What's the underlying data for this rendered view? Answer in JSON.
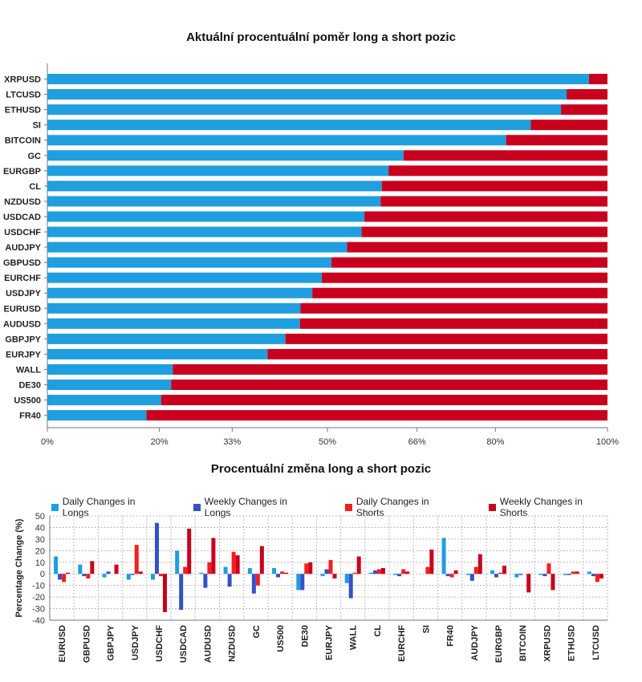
{
  "chart_data": [
    {
      "type": "bar",
      "orientation": "horizontal",
      "stacked": true,
      "title": "Aktuální procentuální poměr long a short pozic",
      "categories": [
        "XRPUSD",
        "LTCUSD",
        "ETHUSD",
        "SI",
        "BITCOIN",
        "GC",
        "EURGBP",
        "CL",
        "NZDUSD",
        "USDCAD",
        "USDCHF",
        "AUDJPY",
        "GBPUSD",
        "EURCHF",
        "USDJPY",
        "EURUSD",
        "AUDUSD",
        "GBPJPY",
        "EURJPY",
        "WALL",
        "DE30",
        "US500",
        "FR40"
      ],
      "series": [
        {
          "values": [
            96.7,
            92.7,
            91.7,
            86.3,
            81.9,
            63.6,
            60.9,
            59.7,
            59.5,
            56.6,
            56.1,
            53.5,
            50.7,
            49.0,
            47.3,
            45.2,
            45.1,
            42.5,
            39.3,
            22.4,
            22.1,
            20.3,
            17.7
          ],
          "color": "#1f9ee0"
        },
        {
          "values": [
            3.3,
            7.3,
            8.3,
            13.7,
            18.1,
            36.4,
            39.1,
            40.3,
            40.5,
            43.4,
            43.9,
            46.5,
            49.3,
            51.0,
            52.7,
            54.8,
            54.9,
            57.5,
            60.7,
            77.6,
            77.9,
            79.7,
            82.3
          ],
          "color": "#c8001e"
        }
      ],
      "xticks": [
        "0%",
        "20%",
        "33%",
        "50%",
        "66%",
        "80%",
        "100%"
      ],
      "xtick_values": [
        0,
        20,
        33,
        50,
        66,
        80,
        100
      ],
      "xlim": [
        0,
        100
      ]
    },
    {
      "type": "bar",
      "title": "Procentuální změna long a short pozic",
      "ylabel": "Percentage Change (%)",
      "ylim": [
        -40,
        50
      ],
      "yticks": [
        50,
        40,
        30,
        20,
        10,
        0,
        -10,
        -20,
        -30,
        -40
      ],
      "grid": true,
      "legend_position": "top",
      "categories": [
        "EURUSD",
        "GBPUSD",
        "GBPJPY",
        "USDJPY",
        "USDCHF",
        "USDCAD",
        "AUDUSD",
        "NZDUSD",
        "GC",
        "US500",
        "DE30",
        "EURJPY",
        "WALL",
        "CL",
        "EURCHF",
        "SI",
        "FR40",
        "AUDJPY",
        "EURGBP",
        "BITCOIN",
        "XRPUSD",
        "ETHUSD",
        "LTCUSD"
      ],
      "series": [
        {
          "name": "Daily Changes in Longs",
          "color": "#1f9ee0",
          "values": [
            15,
            8,
            -3,
            -5,
            -5,
            20,
            1,
            6,
            5,
            5,
            -14,
            -2,
            -8,
            1,
            -1,
            0,
            31,
            -1,
            3,
            -3,
            -1,
            -1,
            2
          ]
        },
        {
          "name": "Weekly Changes in Longs",
          "color": "#3550c8",
          "values": [
            -5,
            -2,
            2,
            -1,
            44,
            -31,
            -12,
            -11,
            -17,
            -3,
            -14,
            4,
            -21,
            3,
            -2,
            0,
            -2,
            -6,
            -3,
            -1,
            -2,
            -1,
            -2
          ]
        },
        {
          "name": "Daily Changes in Shorts",
          "color": "#f41e1e",
          "values": [
            -7,
            -4,
            0,
            25,
            -2,
            6,
            10,
            19,
            -10,
            2,
            9,
            12,
            1,
            4,
            4,
            6,
            -3,
            6,
            1,
            0,
            9,
            2,
            -7
          ]
        },
        {
          "name": "Weekly Changes in Shorts",
          "color": "#c8001e",
          "values": [
            1,
            11,
            8,
            2,
            -33,
            39,
            31,
            16,
            24,
            1,
            10,
            -4,
            15,
            5,
            2,
            21,
            3,
            17,
            7,
            -16,
            -14,
            2,
            -4
          ]
        }
      ]
    }
  ]
}
